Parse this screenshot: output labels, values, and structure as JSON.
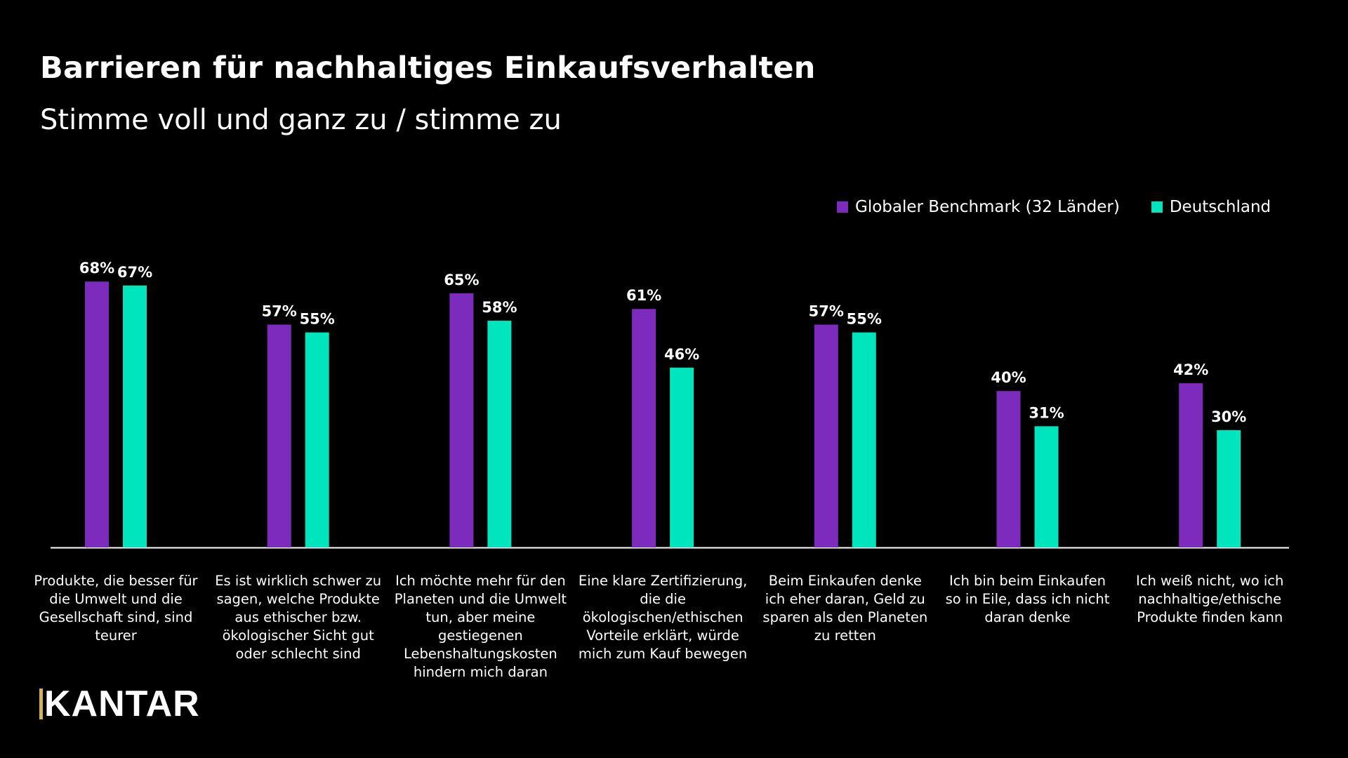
{
  "title": "Barrieren für nachhaltiges Einkaufsverhalten",
  "subtitle": "Stimme voll und ganz zu / stimme zu",
  "logo_text": "KANTAR",
  "colors": {
    "background": "#000000",
    "global": "#7c2bbd",
    "germany": "#00e5bd",
    "axis": "#ffffff",
    "logo_accent": "#d4b35b"
  },
  "chart_data": {
    "type": "bar",
    "title": "Barrieren für nachhaltiges Einkaufsverhalten",
    "subtitle": "Stimme voll und ganz zu / stimme zu",
    "ylim": [
      0,
      100
    ],
    "grid": false,
    "legend_position": "top-right",
    "categories": [
      "Produkte, die besser für die Umwelt und die Gesellschaft sind, sind teurer",
      "Es ist wirklich schwer zu sagen, welche Produkte aus ethischer bzw. ökologischer Sicht gut oder schlecht sind",
      "Ich möchte mehr für den Planeten und die Umwelt tun, aber meine gestiegenen Lebenshaltungskosten hindern mich daran",
      "Eine klare Zertifizierung, die die ökologischen/ethischen Vorteile erklärt, würde mich zum Kauf bewegen",
      "Beim Einkaufen denke ich eher daran, Geld zu sparen als den Planeten zu retten",
      "Ich bin beim Einkaufen so in Eile, dass ich nicht daran denke",
      "Ich weiß nicht, wo ich nachhaltige/ethische Produkte finden kann"
    ],
    "series": [
      {
        "name": "Globaler Benchmark (32 Länder)",
        "color": "#7c2bbd",
        "values": [
          68,
          57,
          65,
          61,
          57,
          40,
          42
        ],
        "labels": [
          "68%",
          "57%",
          "65%",
          "61%",
          "57%",
          "40%",
          "42%"
        ]
      },
      {
        "name": "Deutschland",
        "color": "#00e5bd",
        "values": [
          67,
          55,
          58,
          46,
          55,
          31,
          30
        ],
        "labels": [
          "67%",
          "55%",
          "58%",
          "46%",
          "55%",
          "31%",
          "30%"
        ]
      }
    ]
  }
}
